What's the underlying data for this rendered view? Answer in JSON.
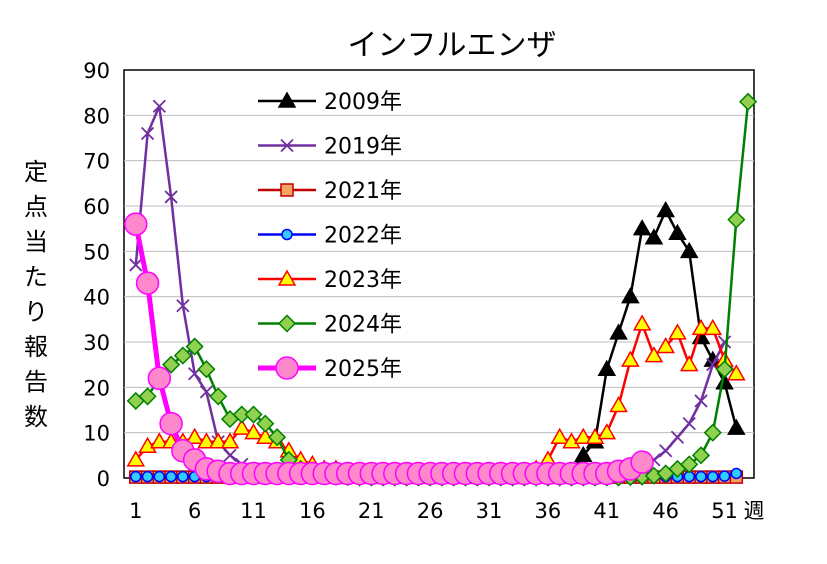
{
  "chart_data": {
    "type": "line",
    "title": "インフルエンザ",
    "ylabel": [
      "定",
      "点",
      "当",
      "た",
      "り",
      "報",
      "告",
      "数"
    ],
    "xlabel": "週",
    "ylim": [
      0,
      90
    ],
    "xlim": [
      0,
      53.5
    ],
    "yticks": [
      "0",
      "10",
      "20",
      "30",
      "40",
      "50",
      "60",
      "70",
      "80",
      "90"
    ],
    "xticks": [
      {
        "week": 1,
        "label": "1"
      },
      {
        "week": 6,
        "label": "6"
      },
      {
        "week": 11,
        "label": "11"
      },
      {
        "week": 16,
        "label": "16"
      },
      {
        "week": 21,
        "label": "21"
      },
      {
        "week": 26,
        "label": "26"
      },
      {
        "week": 31,
        "label": "31"
      },
      {
        "week": 36,
        "label": "36"
      },
      {
        "week": 41,
        "label": "41"
      },
      {
        "week": 46,
        "label": "46"
      },
      {
        "week": 51,
        "label": "51"
      }
    ],
    "legend_position": "top-center",
    "series": [
      {
        "name": "2009年",
        "color": "#000000",
        "fill": "#000000",
        "marker": "triangle",
        "width": 2.5,
        "values": [
          null,
          null,
          null,
          null,
          null,
          null,
          null,
          null,
          null,
          null,
          null,
          null,
          null,
          null,
          null,
          null,
          null,
          null,
          null,
          null,
          null,
          null,
          null,
          null,
          null,
          null,
          null,
          null,
          null,
          null,
          null,
          null,
          null,
          null,
          0.3,
          0.4,
          0.5,
          1.5,
          5,
          8,
          24,
          32,
          40,
          55,
          53,
          59,
          54,
          50,
          31,
          26,
          21,
          11
        ]
      },
      {
        "name": "2019年",
        "color": "#7030A0",
        "fill": "#7030A0",
        "marker": "x",
        "width": 2.5,
        "values": [
          47,
          76,
          82,
          62,
          38,
          23,
          19,
          8,
          5,
          3,
          2,
          1.5,
          1,
          0.8,
          0.5,
          0.3,
          0.3,
          0.2,
          0.2,
          0.1,
          0.1,
          0.1,
          0.1,
          0.1,
          0.1,
          0.1,
          0.1,
          0.1,
          0.1,
          0.1,
          0.1,
          0.1,
          0.1,
          0.2,
          0.2,
          0.3,
          0.4,
          0.5,
          0.6,
          0.8,
          1,
          1.5,
          2,
          3,
          4,
          6,
          9,
          12,
          17,
          25,
          30,
          null
        ]
      },
      {
        "name": "2021年",
        "color": "#C00000",
        "fill": "#F4A460",
        "marker": "square",
        "width": 2.5,
        "values": [
          0.2,
          0.2,
          0.2,
          0.2,
          0.2,
          0.2,
          0.2,
          0.2,
          0.2,
          0.2,
          0.2,
          0.2,
          0.2,
          0.2,
          0.2,
          0.2,
          0.2,
          0.2,
          0.2,
          0.2,
          0.2,
          0.2,
          0.2,
          0.2,
          0.2,
          0.2,
          0.2,
          0.2,
          0.2,
          0.2,
          0.2,
          0.2,
          0.2,
          0.2,
          0.2,
          0.2,
          0.2,
          0.2,
          0.2,
          0.2,
          0.2,
          0.2,
          0.2,
          0.2,
          0.2,
          0.2,
          0.2,
          0.2,
          0.2,
          0.2,
          0.2,
          0.2
        ]
      },
      {
        "name": "2022年",
        "color": "#0000FF",
        "fill": "#33CCFF",
        "marker": "circle",
        "width": 2.5,
        "values": [
          0.3,
          0.3,
          0.3,
          0.3,
          0.3,
          0.3,
          0.3,
          0.3,
          0.3,
          0.3,
          0.3,
          0.3,
          0.3,
          0.3,
          0.3,
          0.3,
          0.3,
          0.3,
          0.3,
          0.3,
          0.3,
          0.3,
          0.3,
          0.3,
          0.3,
          0.3,
          0.3,
          0.3,
          0.3,
          0.3,
          0.3,
          0.3,
          0.3,
          0.3,
          0.3,
          0.3,
          0.3,
          0.3,
          0.3,
          0.3,
          0.3,
          0.3,
          0.3,
          0.3,
          0.3,
          0.3,
          0.3,
          0.3,
          0.3,
          0.3,
          0.4,
          1.0
        ]
      },
      {
        "name": "2023年",
        "color": "#FF0000",
        "fill": "#FFFF00",
        "marker": "triangle",
        "width": 2.5,
        "values": [
          4,
          7,
          8,
          8,
          8,
          9,
          8,
          8,
          8,
          11,
          10,
          9,
          8,
          6,
          4,
          3,
          2,
          2,
          1,
          1,
          1,
          1,
          1,
          1,
          1,
          1,
          1,
          1,
          1,
          1,
          1,
          1,
          1,
          1,
          2,
          4,
          9,
          8,
          9,
          9,
          10,
          16,
          26,
          34,
          27,
          29,
          32,
          25,
          33,
          33,
          26,
          23
        ]
      },
      {
        "name": "2024年",
        "color": "#008000",
        "fill": "#92D050",
        "marker": "diamond",
        "width": 2.5,
        "values": [
          17,
          18,
          22,
          25,
          27,
          29,
          24,
          18,
          13,
          14,
          14,
          12,
          9,
          4,
          2,
          1,
          0.5,
          0.3,
          0.2,
          0.1,
          0.1,
          0.1,
          0.1,
          0.1,
          0.1,
          0.1,
          0.1,
          0.1,
          0.1,
          0.1,
          0.1,
          0.1,
          0.1,
          0.1,
          0.1,
          0.1,
          0.1,
          0.1,
          0.1,
          0.1,
          0.1,
          0.1,
          0.2,
          0.3,
          0.5,
          1,
          2,
          3,
          5,
          10,
          24,
          57,
          83
        ]
      },
      {
        "name": "2025年",
        "color": "#FF00FF",
        "fill": "#FF88CC",
        "marker": "bigcircle",
        "width": 5,
        "values": [
          56,
          43,
          22,
          12,
          6,
          4,
          2,
          1.5,
          1,
          1,
          1,
          1,
          1,
          1,
          1,
          1,
          1,
          1,
          1,
          1,
          1,
          1,
          1,
          1,
          1,
          1,
          1,
          1,
          1,
          1,
          1,
          1,
          1,
          1,
          1,
          1,
          1,
          1,
          1,
          1,
          1,
          1.5,
          2,
          3.5
        ]
      }
    ]
  }
}
